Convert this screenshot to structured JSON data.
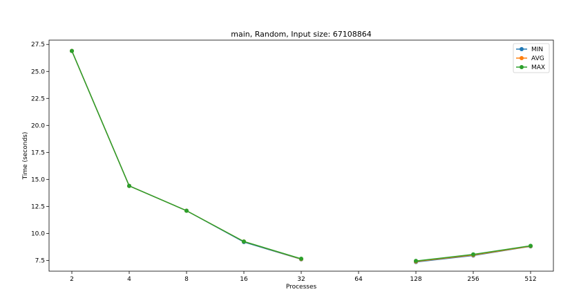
{
  "chart_data": {
    "type": "line",
    "title": "main, Random, Input size: 67108864",
    "xlabel": "Processes",
    "ylabel": "Time (seconds)",
    "categories": [
      "2",
      "4",
      "8",
      "16",
      "32",
      "64",
      "128",
      "256",
      "512"
    ],
    "ylim": [
      6.5,
      27.9
    ],
    "yticks": [
      7.5,
      10.0,
      12.5,
      15.0,
      17.5,
      20.0,
      22.5,
      25.0,
      27.5
    ],
    "ytick_labels": [
      "7.5",
      "10.0",
      "12.5",
      "15.0",
      "17.5",
      "20.0",
      "22.5",
      "25.0",
      "27.5"
    ],
    "grid": false,
    "legend_position": "top-right",
    "series": [
      {
        "name": "MIN",
        "color": "#1f77b4",
        "values": [
          26.9,
          14.4,
          12.1,
          9.2,
          7.6,
          null,
          7.35,
          7.95,
          8.8
        ]
      },
      {
        "name": "AVG",
        "color": "#ff7f0e",
        "values": [
          26.9,
          14.4,
          12.1,
          9.25,
          7.62,
          null,
          7.4,
          8.0,
          8.82
        ]
      },
      {
        "name": "MAX",
        "color": "#2ca02c",
        "values": [
          26.9,
          14.4,
          12.1,
          9.25,
          7.65,
          null,
          7.45,
          8.05,
          8.85
        ]
      }
    ]
  }
}
